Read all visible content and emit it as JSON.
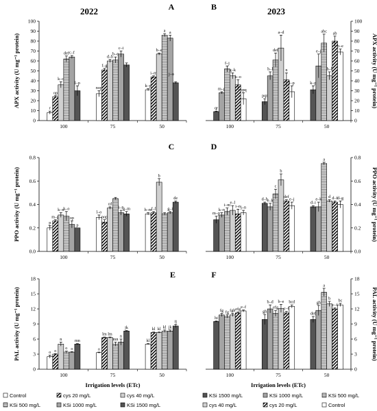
{
  "header": {
    "left_year": "2022",
    "right_year": "2023"
  },
  "legend": [
    {
      "name": "Control",
      "style": "white"
    },
    {
      "name": "cys 20 mg/L",
      "style": "diag"
    },
    {
      "name": "cys 40 mg/L",
      "style": "lightgray"
    },
    {
      "name": "KSi 500 mg/L",
      "style": "horiz"
    },
    {
      "name": "KSi 1000 mg/L",
      "style": "gray"
    },
    {
      "name": "KSi 1500 mg/L",
      "style": "dark"
    }
  ],
  "chart_data": [
    {
      "panel": "A",
      "type": "bar",
      "title": "2022",
      "ylabel": "APX activity (U mg⁻¹ protein)",
      "xlabel": "",
      "ylim": [
        0,
        100
      ],
      "yticks": [
        0,
        10,
        20,
        30,
        40,
        50,
        60,
        70,
        80,
        90,
        100
      ],
      "yaxis": "left",
      "categories": [
        "100",
        "75",
        "50"
      ],
      "series": [
        {
          "name": "Control",
          "values": [
            8,
            27,
            31
          ],
          "errors": [
            1.5,
            3,
            1
          ],
          "letters": [
            "r",
            "nop",
            "k–p"
          ]
        },
        {
          "name": "cys 20 mg/L",
          "values": [
            24,
            51,
            44
          ],
          "errors": [
            1,
            1.5,
            1
          ],
          "letters": [
            "op",
            "f–g",
            "i–m"
          ]
        },
        {
          "name": "cys 40 mg/L",
          "values": [
            36,
            60,
            67
          ],
          "errors": [
            3,
            1.5,
            1
          ],
          "letters": [
            "k–o",
            "d–h",
            "b–e"
          ]
        },
        {
          "name": "KSi 500 mg/L",
          "values": [
            62,
            61,
            86
          ],
          "errors": [
            3,
            3,
            1.5
          ],
          "letters": [
            "def",
            "b–e",
            "a"
          ]
        },
        {
          "name": "KSi 1000 mg/L",
          "values": [
            64,
            67,
            83
          ],
          "errors": [
            1.5,
            3,
            3
          ],
          "letters": [
            "c–f",
            "c–i",
            "a"
          ]
        },
        {
          "name": "KSi 1500 mg/L",
          "values": [
            30,
            56,
            38
          ],
          "errors": [
            5,
            2,
            1
          ],
          "letters": [
            "l–p",
            "",
            ""
          ]
        }
      ],
      "extra_letters": [
        "j–o"
      ]
    },
    {
      "panel": "B",
      "type": "bar",
      "title": "2023",
      "ylabel": "APX activity (U mg⁻¹ protein)",
      "xlabel": "",
      "ylim": [
        0,
        100
      ],
      "yticks": [
        0,
        10,
        20,
        30,
        40,
        50,
        60,
        70,
        80,
        90,
        100
      ],
      "yaxis": "right",
      "categories": [
        "100",
        "75",
        "50"
      ],
      "series": [
        {
          "name": "KSi 1500 mg/L",
          "values": [
            9,
            19,
            31
          ],
          "errors": [
            0.5,
            3,
            4
          ],
          "letters": [
            "qr",
            "pqr",
            "k–p"
          ]
        },
        {
          "name": "KSi 1000 mg/L",
          "values": [
            28,
            45,
            55
          ],
          "errors": [
            1,
            4,
            12
          ],
          "letters": [
            "m–p",
            "h–l",
            "e–j"
          ]
        },
        {
          "name": "KSi 500 mg/L",
          "values": [
            52,
            61,
            78
          ],
          "errors": [
            3,
            7,
            9
          ],
          "letters": [
            "f–j",
            "def",
            "abc"
          ]
        },
        {
          "name": "cys 40 mg/L",
          "values": [
            45,
            73,
            45
          ],
          "errors": [
            3,
            13,
            4
          ],
          "letters": [
            "g–k",
            "a–d",
            "h–l"
          ]
        },
        {
          "name": "cys 20 mg/L",
          "values": [
            36,
            41,
            80
          ],
          "errors": [
            5,
            7,
            5
          ],
          "letters": [
            "k–o",
            "n",
            "ab"
          ]
        },
        {
          "name": "Control",
          "values": [
            22,
            29,
            69
          ],
          "errors": [
            6,
            6,
            3
          ],
          "letters": [
            "opq",
            "l–p",
            "b–e"
          ]
        }
      ]
    },
    {
      "panel": "C",
      "type": "bar",
      "title": "",
      "ylabel": "PPO activity (U mg⁻¹ protein)",
      "xlabel": "",
      "ylim": [
        0,
        0.8
      ],
      "yticks": [
        0,
        0.2,
        0.4,
        0.6,
        0.8
      ],
      "yaxis": "left",
      "categories": [
        "100",
        "75",
        "50"
      ],
      "series": [
        {
          "name": "Control",
          "values": [
            0.2,
            0.29,
            0.32
          ],
          "errors": [
            0.02,
            0.02,
            0.01
          ],
          "letters": [
            "p",
            "l–o",
            "h–m"
          ]
        },
        {
          "name": "cys 20 mg/L",
          "values": [
            0.26,
            0.25,
            0.33
          ],
          "errors": [
            0.01,
            0.02,
            0.01
          ],
          "letters": [
            "m–p",
            "nop",
            "f–l"
          ]
        },
        {
          "name": "cys 40 mg/L",
          "values": [
            0.31,
            0.37,
            0.59
          ],
          "errors": [
            0.02,
            0.01,
            0.03
          ],
          "letters": [
            "k–n",
            "cd",
            "b"
          ]
        },
        {
          "name": "KSi 500 mg/L",
          "values": [
            0.3,
            0.45,
            0.32
          ],
          "errors": [
            0.04,
            0.01,
            0.01
          ],
          "letters": [
            "k–o",
            "",
            ""
          ]
        },
        {
          "name": "KSi 1000 mg/L",
          "values": [
            0.23,
            0.33,
            0.33
          ],
          "errors": [
            0.03,
            0.02,
            0.01
          ],
          "letters": [
            "op",
            "i–n",
            "g–i"
          ]
        },
        {
          "name": "KSi 1500 mg/L",
          "values": [
            0.2,
            0.32,
            0.42
          ],
          "errors": [
            0.0,
            0.02,
            0.01
          ],
          "letters": [
            "p",
            "g–m",
            "de"
          ]
        }
      ]
    },
    {
      "panel": "D",
      "type": "bar",
      "title": "",
      "ylabel": "PPO activity (U mg⁻¹ protein)",
      "xlabel": "",
      "ylim": [
        0,
        0.8
      ],
      "yticks": [
        0,
        0.2,
        0.4,
        0.6,
        0.8
      ],
      "yaxis": "right",
      "categories": [
        "100",
        "75",
        "50"
      ],
      "series": [
        {
          "name": "KSi 1500 mg/L",
          "values": [
            0.27,
            0.41,
            0.38
          ],
          "errors": [
            0.03,
            0.01,
            0.01
          ],
          "letters": [
            "m–p",
            "d–h",
            "d–i"
          ]
        },
        {
          "name": "KSi 1000 mg/L",
          "values": [
            0.31,
            0.38,
            0.38
          ],
          "errors": [
            0.02,
            0.03,
            0.04
          ],
          "letters": [
            "k–n",
            "e–k",
            "e–k"
          ]
        },
        {
          "name": "KSi 500 mg/L",
          "values": [
            0.34,
            0.49,
            0.75
          ],
          "errors": [
            0.03,
            0.04,
            0.01
          ],
          "letters": [
            "i–m",
            "c",
            "a"
          ]
        },
        {
          "name": "cys 40 mg/L",
          "values": [
            0.35,
            0.61,
            0.43
          ],
          "errors": [
            0.04,
            0.05,
            0.01
          ],
          "letters": [
            "e–l",
            "b",
            "d"
          ]
        },
        {
          "name": "cys 20 mg/L",
          "values": [
            0.32,
            0.43,
            0.42
          ],
          "errors": [
            0.04,
            0.01,
            0.01
          ],
          "letters": [
            "i–n",
            "def",
            "d–f"
          ]
        },
        {
          "name": "Control",
          "values": [
            0.33,
            0.39,
            0.4
          ],
          "errors": [
            0.02,
            0.03,
            0.03
          ],
          "letters": [
            "j–n",
            "e–j",
            "d–g"
          ]
        }
      ]
    },
    {
      "panel": "E",
      "type": "bar",
      "title": "",
      "ylabel": "PAL activity (U mg⁻¹ protein)",
      "xlabel": "Irrigation levels (ETc)",
      "ylim": [
        0,
        18
      ],
      "yticks": [
        0,
        3,
        6,
        9,
        12,
        15,
        18
      ],
      "yaxis": "left",
      "categories": [
        "100",
        "75",
        "50"
      ],
      "series": [
        {
          "name": "Control",
          "values": [
            2.5,
            3.3,
            5.0
          ],
          "errors": [
            0.3,
            0.1,
            0.1
          ],
          "letters": [
            "o",
            "o",
            "kl"
          ]
        },
        {
          "name": "cys 20 mg/L",
          "values": [
            3.0,
            6.3,
            7.3
          ],
          "errors": [
            0.1,
            0.1,
            0.1
          ],
          "letters": [
            "o",
            "lm",
            "kl"
          ]
        },
        {
          "name": "cys 40 mg/L",
          "values": [
            5.0,
            6.3,
            7.3
          ],
          "errors": [
            0.4,
            0.1,
            0.1
          ],
          "letters": [
            "n",
            "lm",
            "kl"
          ]
        },
        {
          "name": "KSi 500 mg/L",
          "values": [
            3.4,
            5.0,
            7.6
          ],
          "errors": [
            0.2,
            0.4,
            0.2
          ],
          "letters": [
            "o",
            "mn",
            "kl"
          ]
        },
        {
          "name": "KSi 1000 mg/L",
          "values": [
            3.4,
            5.4,
            7.6
          ],
          "errors": [
            0.1,
            0.6,
            0.2
          ],
          "letters": [
            "o",
            "n",
            "jk"
          ]
        },
        {
          "name": "KSi 1500 mg/L",
          "values": [
            5.0,
            7.6,
            8.6
          ],
          "errors": [
            0.1,
            0.1,
            0.3
          ],
          "letters": [
            "mn",
            "jk",
            "ij"
          ]
        }
      ]
    },
    {
      "panel": "F",
      "type": "bar",
      "title": "",
      "ylabel": "PAL activity (U mg⁻¹ protein)",
      "xlabel": "Irrigation levels (ETc)",
      "ylim": [
        0,
        18
      ],
      "yticks": [
        0,
        3,
        6,
        9,
        12,
        15,
        18
      ],
      "yaxis": "right",
      "categories": [
        "100",
        "75",
        "50"
      ],
      "series": [
        {
          "name": "KSi 1500 mg/L",
          "values": [
            9.5,
            9.9,
            9.9
          ],
          "errors": [
            0.1,
            1.0,
            0.6
          ],
          "letters": [
            "hi",
            "gh",
            "def"
          ]
        },
        {
          "name": "KSi 1000 mg/L",
          "values": [
            10.8,
            12.0,
            11.7
          ],
          "errors": [
            0.3,
            0.8,
            1.0
          ],
          "letters": [
            "fg",
            "b–d",
            "gh"
          ]
        },
        {
          "name": "KSi 500 mg/L",
          "values": [
            10.5,
            11.1,
            15.3
          ],
          "errors": [
            0.3,
            0.6,
            0.8
          ],
          "letters": [
            "fg",
            "efg",
            "a"
          ]
        },
        {
          "name": "cys 40 mg/L",
          "values": [
            10.8,
            12.1,
            13.0
          ],
          "errors": [
            0.3,
            0.8,
            0.5
          ],
          "letters": [
            "fgh",
            "b–e",
            "b"
          ]
        },
        {
          "name": "cys 20 mg/L",
          "values": [
            11.2,
            11.2,
            12.0
          ],
          "errors": [
            0.2,
            0.3,
            0.2
          ],
          "letters": [
            "efg",
            "c–f",
            "c–f"
          ]
        },
        {
          "name": "Control",
          "values": [
            11.6,
            12.5,
            12.8
          ],
          "errors": [
            0.2,
            0.3,
            0.3
          ],
          "letters": [
            "e–f",
            "bcd",
            "bc"
          ]
        }
      ]
    }
  ]
}
